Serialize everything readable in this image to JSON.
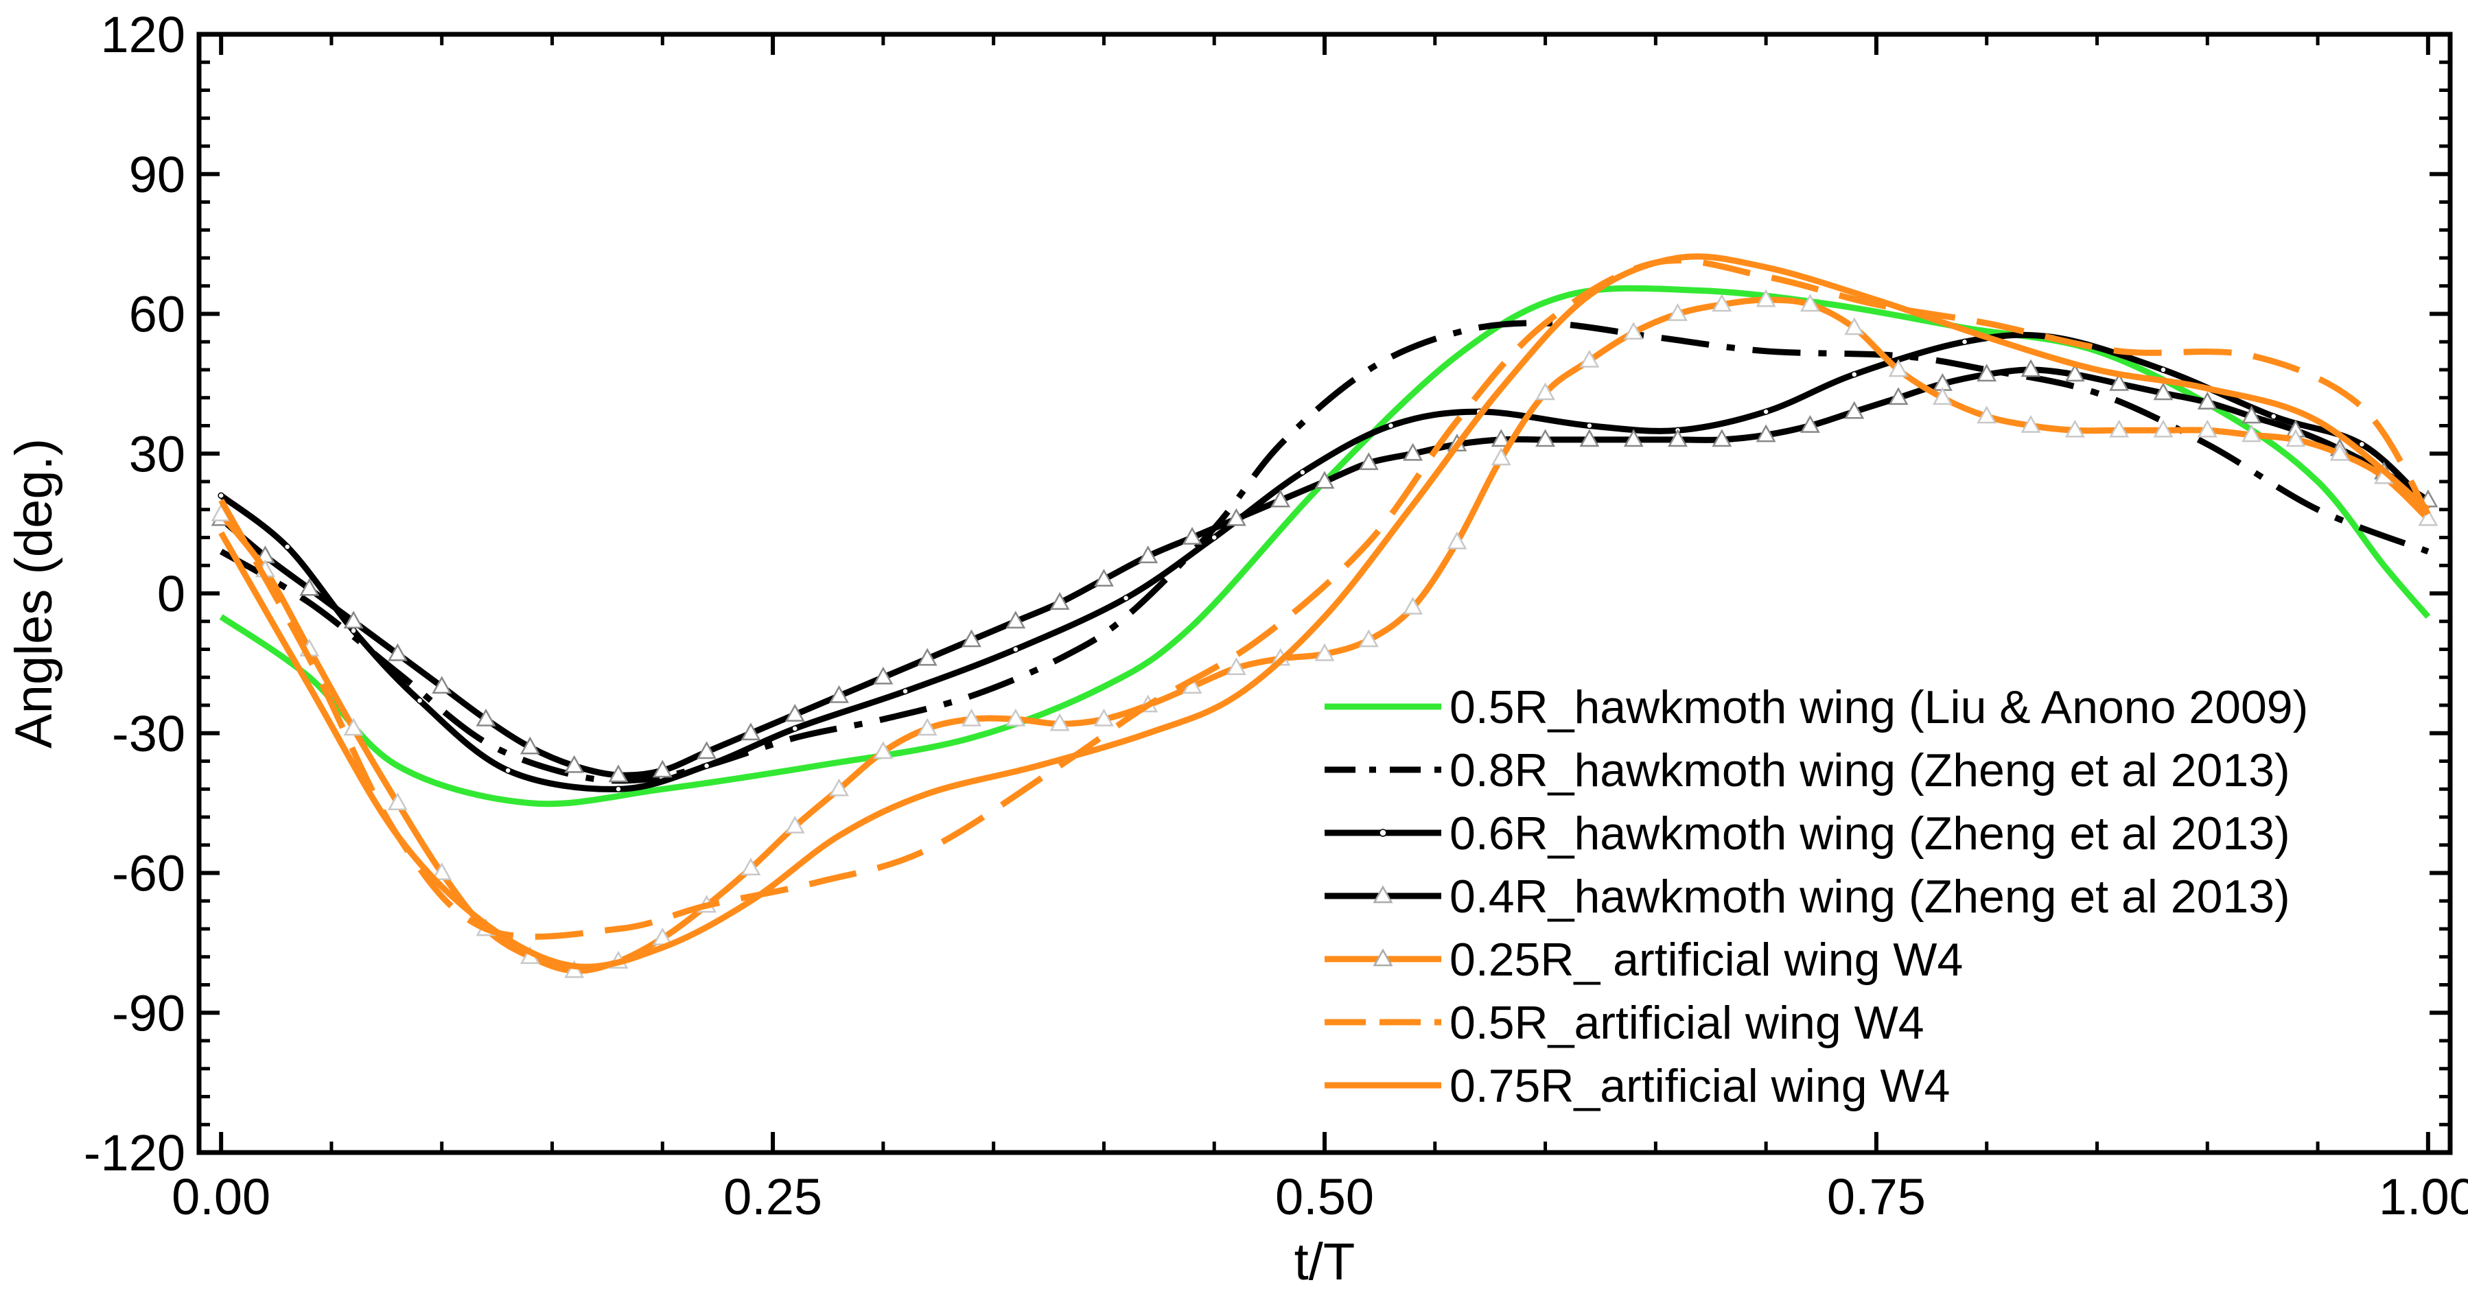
{
  "chart_data": {
    "type": "line",
    "title": "",
    "xlabel": "t/T",
    "ylabel": "Angles (deg.)",
    "xlim": [
      -0.01,
      1.01
    ],
    "ylim": [
      -120,
      120
    ],
    "xticks": [
      0.0,
      0.25,
      0.5,
      0.75,
      1.0
    ],
    "xtick_labels": [
      "0.00",
      "0.25",
      "0.50",
      "0.75",
      "1.00"
    ],
    "yticks": [
      -120,
      -90,
      -60,
      -30,
      0,
      30,
      60,
      90,
      120
    ],
    "ytick_labels": [
      "-120",
      "-90",
      "-60",
      "-30",
      "0",
      "30",
      "60",
      "90",
      "120"
    ],
    "legend_position": "bottom-right",
    "series": [
      {
        "name": "0.5R_hawkmoth wing (Liu & Anono 2009)",
        "color": "#33e833",
        "dash": "solid",
        "marker": "none",
        "points": [
          [
            0.0,
            -5
          ],
          [
            0.04,
            -18
          ],
          [
            0.08,
            -37
          ],
          [
            0.14,
            -45
          ],
          [
            0.2,
            -42
          ],
          [
            0.27,
            -37
          ],
          [
            0.34,
            -31
          ],
          [
            0.4,
            -20
          ],
          [
            0.44,
            -7
          ],
          [
            0.5,
            24
          ],
          [
            0.56,
            51
          ],
          [
            0.61,
            64
          ],
          [
            0.67,
            65
          ],
          [
            0.73,
            62
          ],
          [
            0.79,
            57
          ],
          [
            0.85,
            52
          ],
          [
            0.91,
            38
          ],
          [
            0.95,
            24
          ],
          [
            0.98,
            6
          ],
          [
            1.0,
            -5
          ]
        ]
      },
      {
        "name": "0.8R_hawkmoth wing (Zheng et al 2013)",
        "color": "#000000",
        "dash": "dashdot",
        "marker": "none",
        "points": [
          [
            0.0,
            9
          ],
          [
            0.04,
            -2
          ],
          [
            0.08,
            -17
          ],
          [
            0.12,
            -32
          ],
          [
            0.16,
            -39
          ],
          [
            0.19,
            -40
          ],
          [
            0.22,
            -37
          ],
          [
            0.26,
            -31
          ],
          [
            0.3,
            -27
          ],
          [
            0.34,
            -22
          ],
          [
            0.38,
            -14
          ],
          [
            0.41,
            -5
          ],
          [
            0.45,
            14
          ],
          [
            0.48,
            32
          ],
          [
            0.52,
            48
          ],
          [
            0.56,
            56
          ],
          [
            0.6,
            58
          ],
          [
            0.65,
            55
          ],
          [
            0.7,
            52
          ],
          [
            0.76,
            51
          ],
          [
            0.8,
            48
          ],
          [
            0.85,
            43
          ],
          [
            0.9,
            32
          ],
          [
            0.95,
            18
          ],
          [
            1.0,
            9
          ]
        ]
      },
      {
        "name": "0.6R_hawkmoth wing (Zheng et al 2013)",
        "color": "#000000",
        "dash": "solid",
        "marker": "dot",
        "points": [
          [
            0.0,
            21
          ],
          [
            0.03,
            10
          ],
          [
            0.06,
            -8
          ],
          [
            0.09,
            -23
          ],
          [
            0.13,
            -38
          ],
          [
            0.18,
            -42
          ],
          [
            0.22,
            -37
          ],
          [
            0.26,
            -29
          ],
          [
            0.31,
            -21
          ],
          [
            0.36,
            -12
          ],
          [
            0.41,
            -1
          ],
          [
            0.45,
            12
          ],
          [
            0.49,
            26
          ],
          [
            0.53,
            36
          ],
          [
            0.57,
            39
          ],
          [
            0.62,
            36
          ],
          [
            0.66,
            35
          ],
          [
            0.7,
            39
          ],
          [
            0.74,
            47
          ],
          [
            0.79,
            54
          ],
          [
            0.83,
            55
          ],
          [
            0.88,
            48
          ],
          [
            0.93,
            38
          ],
          [
            0.97,
            32
          ],
          [
            1.0,
            19
          ]
        ]
      },
      {
        "name": "0.4R_hawkmoth wing (Zheng et al 2013)",
        "color": "#000000",
        "dash": "solid",
        "marker": "triangle",
        "points": [
          [
            0.0,
            16
          ],
          [
            0.02,
            8
          ],
          [
            0.04,
            1
          ],
          [
            0.06,
            -6
          ],
          [
            0.08,
            -13
          ],
          [
            0.1,
            -20
          ],
          [
            0.12,
            -27
          ],
          [
            0.14,
            -33
          ],
          [
            0.16,
            -37
          ],
          [
            0.18,
            -39
          ],
          [
            0.2,
            -38
          ],
          [
            0.22,
            -34
          ],
          [
            0.24,
            -30
          ],
          [
            0.26,
            -26
          ],
          [
            0.28,
            -22
          ],
          [
            0.3,
            -18
          ],
          [
            0.32,
            -14
          ],
          [
            0.34,
            -10
          ],
          [
            0.36,
            -6
          ],
          [
            0.38,
            -2
          ],
          [
            0.4,
            3
          ],
          [
            0.42,
            8
          ],
          [
            0.44,
            12
          ],
          [
            0.46,
            16
          ],
          [
            0.48,
            20
          ],
          [
            0.5,
            24
          ],
          [
            0.52,
            28
          ],
          [
            0.54,
            30
          ],
          [
            0.56,
            32
          ],
          [
            0.58,
            33
          ],
          [
            0.6,
            33
          ],
          [
            0.62,
            33
          ],
          [
            0.64,
            33
          ],
          [
            0.66,
            33
          ],
          [
            0.68,
            33
          ],
          [
            0.7,
            34
          ],
          [
            0.72,
            36
          ],
          [
            0.74,
            39
          ],
          [
            0.76,
            42
          ],
          [
            0.78,
            45
          ],
          [
            0.8,
            47
          ],
          [
            0.82,
            48
          ],
          [
            0.84,
            47
          ],
          [
            0.86,
            45
          ],
          [
            0.88,
            43
          ],
          [
            0.9,
            41
          ],
          [
            0.92,
            38
          ],
          [
            0.94,
            35
          ],
          [
            0.96,
            31
          ],
          [
            0.98,
            26
          ],
          [
            1.0,
            20
          ]
        ]
      },
      {
        "name": "0.25R_ artificial wing W4",
        "color": "#ff8c1a",
        "dash": "solid",
        "marker": "triangle",
        "points": [
          [
            0.0,
            17
          ],
          [
            0.02,
            5
          ],
          [
            0.04,
            -12
          ],
          [
            0.06,
            -29
          ],
          [
            0.08,
            -45
          ],
          [
            0.1,
            -60
          ],
          [
            0.12,
            -72
          ],
          [
            0.14,
            -78
          ],
          [
            0.16,
            -81
          ],
          [
            0.18,
            -79
          ],
          [
            0.2,
            -74
          ],
          [
            0.22,
            -67
          ],
          [
            0.24,
            -59
          ],
          [
            0.26,
            -50
          ],
          [
            0.28,
            -42
          ],
          [
            0.3,
            -34
          ],
          [
            0.32,
            -29
          ],
          [
            0.34,
            -27
          ],
          [
            0.36,
            -27
          ],
          [
            0.38,
            -28
          ],
          [
            0.4,
            -27
          ],
          [
            0.42,
            -24
          ],
          [
            0.44,
            -20
          ],
          [
            0.46,
            -16
          ],
          [
            0.48,
            -14
          ],
          [
            0.5,
            -13
          ],
          [
            0.52,
            -10
          ],
          [
            0.54,
            -3
          ],
          [
            0.56,
            11
          ],
          [
            0.58,
            29
          ],
          [
            0.6,
            43
          ],
          [
            0.62,
            50
          ],
          [
            0.64,
            56
          ],
          [
            0.66,
            60
          ],
          [
            0.68,
            62
          ],
          [
            0.7,
            63
          ],
          [
            0.72,
            62
          ],
          [
            0.74,
            57
          ],
          [
            0.76,
            48
          ],
          [
            0.78,
            42
          ],
          [
            0.8,
            38
          ],
          [
            0.82,
            36
          ],
          [
            0.84,
            35
          ],
          [
            0.86,
            35
          ],
          [
            0.88,
            35
          ],
          [
            0.9,
            35
          ],
          [
            0.92,
            34
          ],
          [
            0.94,
            33
          ],
          [
            0.96,
            30
          ],
          [
            0.98,
            25
          ],
          [
            1.0,
            16
          ]
        ]
      },
      {
        "name": "0.5R_artificial wing W4",
        "color": "#ff8c1a",
        "dash": "longdash",
        "marker": "none",
        "points": [
          [
            0.0,
            20
          ],
          [
            0.04,
            -14
          ],
          [
            0.08,
            -52
          ],
          [
            0.12,
            -72
          ],
          [
            0.18,
            -72
          ],
          [
            0.22,
            -67
          ],
          [
            0.27,
            -62
          ],
          [
            0.32,
            -55
          ],
          [
            0.38,
            -37
          ],
          [
            0.42,
            -24
          ],
          [
            0.47,
            -10
          ],
          [
            0.52,
            11
          ],
          [
            0.56,
            37
          ],
          [
            0.6,
            58
          ],
          [
            0.65,
            71
          ],
          [
            0.7,
            68
          ],
          [
            0.75,
            62
          ],
          [
            0.8,
            58
          ],
          [
            0.86,
            52
          ],
          [
            0.92,
            51
          ],
          [
            0.97,
            40
          ],
          [
            1.0,
            17
          ]
        ]
      },
      {
        "name": "0.75R_artificial wing W4",
        "color": "#ff8c1a",
        "dash": "solid",
        "marker": "none",
        "points": [
          [
            0.0,
            13
          ],
          [
            0.04,
            -20
          ],
          [
            0.08,
            -52
          ],
          [
            0.12,
            -71
          ],
          [
            0.16,
            -80
          ],
          [
            0.2,
            -76
          ],
          [
            0.24,
            -66
          ],
          [
            0.28,
            -52
          ],
          [
            0.32,
            -43
          ],
          [
            0.37,
            -37
          ],
          [
            0.42,
            -30
          ],
          [
            0.46,
            -22
          ],
          [
            0.5,
            -5
          ],
          [
            0.54,
            19
          ],
          [
            0.58,
            44
          ],
          [
            0.62,
            64
          ],
          [
            0.66,
            72
          ],
          [
            0.7,
            70
          ],
          [
            0.75,
            63
          ],
          [
            0.8,
            55
          ],
          [
            0.85,
            48
          ],
          [
            0.9,
            44
          ],
          [
            0.95,
            37
          ],
          [
            1.0,
            18
          ]
        ]
      }
    ]
  }
}
